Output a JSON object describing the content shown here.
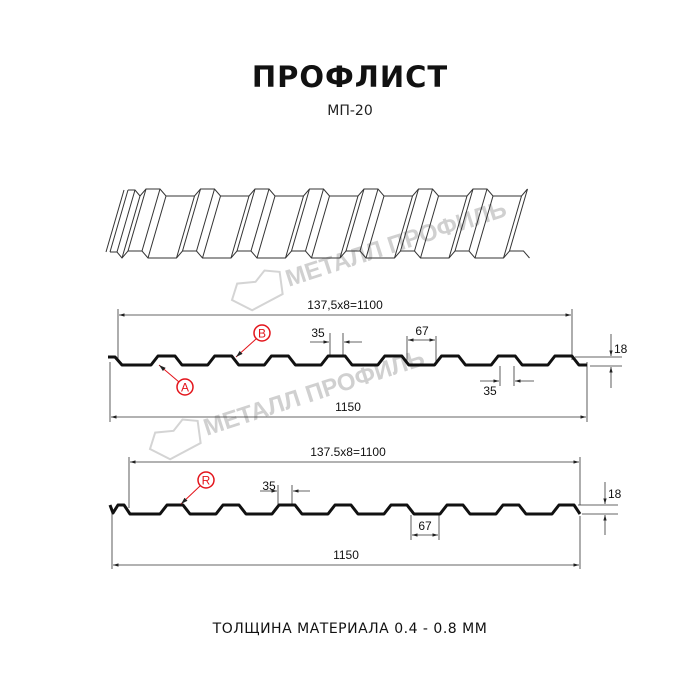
{
  "header": {
    "title": "ПРОФЛИСТ",
    "subtitle": "МП-20"
  },
  "watermark": {
    "text": "МЕТАЛЛ ПРОФИЛЬ",
    "color": "#d0d0d0"
  },
  "colors": {
    "profile": "#111111",
    "callout": "#e3141b",
    "dimension": "#333333"
  },
  "profile_1": {
    "pitch_label": "137,5х8=1100",
    "total_width_label": "1150",
    "crest_top_label": "35",
    "trough_label": "35",
    "rib_label": "67",
    "height_label": "18",
    "callout_b": "B",
    "callout_a": "A"
  },
  "profile_2": {
    "pitch_label": "137.5x8=1100",
    "total_width_label": "1150",
    "crest_top_label": "35",
    "rib_label": "67",
    "height_label": "18",
    "callout_r": "R"
  },
  "footer": {
    "thickness_label": "ТОЛЩИНА МАТЕРИАЛА 0.4 - 0.8 ММ"
  }
}
